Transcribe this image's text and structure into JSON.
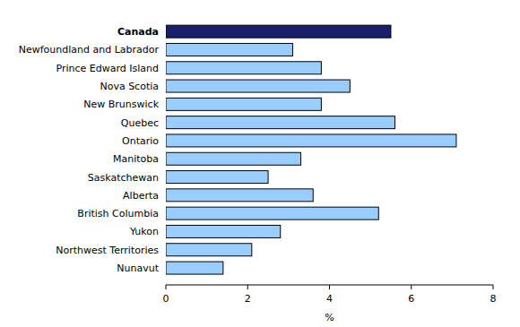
{
  "chart_data": {
    "type": "bar",
    "orientation": "horizontal",
    "categories": [
      "Canada",
      "Newfoundland and Labrador",
      "Prince Edward Island",
      "Nova Scotia",
      "New Brunswick",
      "Quebec",
      "Ontario",
      "Manitoba",
      "Saskatchewan",
      "Alberta",
      "British Columbia",
      "Yukon",
      "Northwest Territories",
      "Nunavut"
    ],
    "values": [
      5.5,
      3.1,
      3.8,
      4.5,
      3.8,
      5.6,
      7.1,
      3.3,
      2.5,
      3.6,
      5.2,
      2.8,
      2.1,
      1.4
    ],
    "colors": [
      "#1a1f6b",
      "#99ccff",
      "#99ccff",
      "#99ccff",
      "#99ccff",
      "#99ccff",
      "#99ccff",
      "#99ccff",
      "#99ccff",
      "#99ccff",
      "#99ccff",
      "#99ccff",
      "#99ccff",
      "#99ccff"
    ],
    "x_label": "%",
    "xlim": [
      0,
      8
    ],
    "xticks": [
      0,
      2,
      4,
      6,
      8
    ],
    "grid": false
  }
}
